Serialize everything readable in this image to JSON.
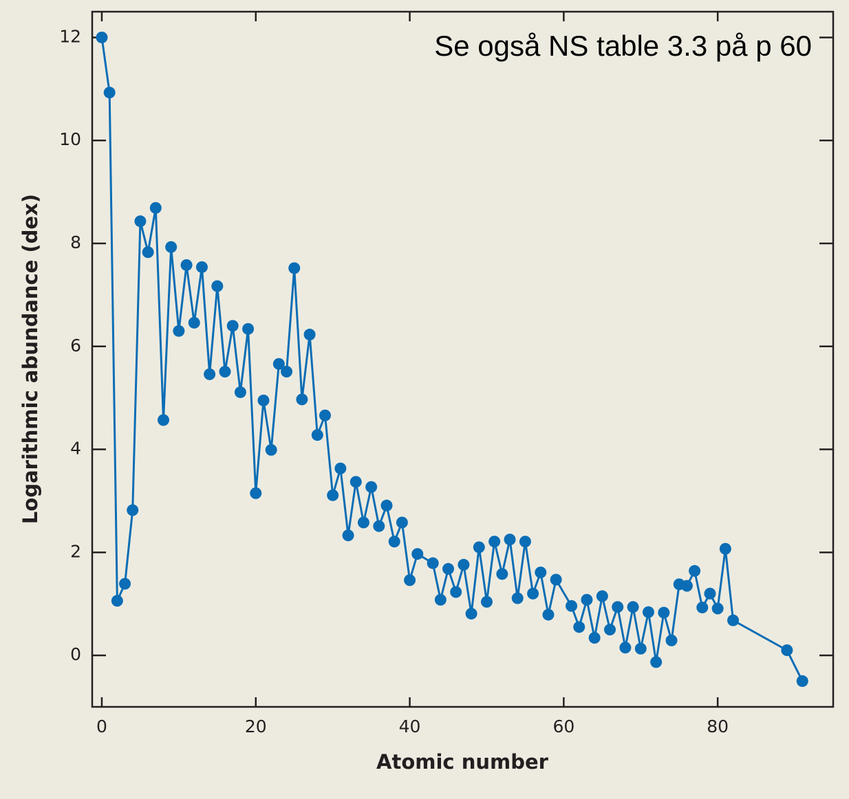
{
  "chart_data": {
    "type": "line",
    "annotation": "Se også NS table 3.3 på p 60",
    "x_label": "Atomic number",
    "y_label": "Logarithmic abundance (dex)",
    "xlim": [
      -1.25,
      95
    ],
    "ylim": [
      -1,
      12.5
    ],
    "xticks": [
      0,
      20,
      40,
      60,
      80
    ],
    "yticks": [
      0,
      2,
      4,
      6,
      8,
      10,
      12
    ],
    "series": [
      {
        "color": "#0b6db5",
        "x": [
          0,
          1,
          2,
          3,
          4,
          5,
          6,
          7,
          8,
          9,
          10,
          11,
          12,
          13,
          14,
          15,
          16,
          17,
          18,
          19,
          20,
          21,
          22,
          23,
          24,
          25,
          26,
          27,
          28,
          29,
          30,
          31,
          32,
          33,
          34,
          35,
          36,
          37,
          38,
          39,
          40,
          41,
          43,
          44,
          45,
          46,
          47,
          48,
          49,
          50,
          51,
          52,
          53,
          54,
          55,
          56,
          57,
          58,
          59,
          61,
          62,
          63,
          64,
          65,
          66,
          67,
          68,
          69,
          70,
          71,
          72,
          73,
          74,
          75,
          76,
          77,
          78,
          79,
          80,
          81,
          82,
          89,
          91
        ],
        "values": [
          12.0,
          10.93,
          1.06,
          1.39,
          2.82,
          8.43,
          7.83,
          8.69,
          4.57,
          7.93,
          6.3,
          7.58,
          6.46,
          7.54,
          5.46,
          7.17,
          5.51,
          6.4,
          5.11,
          6.34,
          3.15,
          4.95,
          3.99,
          5.66,
          5.51,
          7.52,
          4.97,
          6.23,
          4.28,
          4.66,
          3.11,
          3.63,
          2.33,
          3.37,
          2.58,
          3.27,
          2.51,
          2.91,
          2.21,
          2.58,
          1.46,
          1.97,
          1.79,
          1.08,
          1.68,
          1.23,
          1.76,
          0.81,
          2.1,
          1.04,
          2.21,
          1.58,
          2.25,
          1.11,
          2.21,
          1.2,
          1.61,
          0.79,
          1.47,
          0.96,
          0.55,
          1.08,
          0.34,
          1.15,
          0.5,
          0.94,
          0.15,
          0.94,
          0.13,
          0.84,
          -0.13,
          0.83,
          0.29,
          1.38,
          1.35,
          1.64,
          0.93,
          1.2,
          0.91,
          2.07,
          0.68,
          0.1,
          -0.5
        ]
      }
    ]
  }
}
